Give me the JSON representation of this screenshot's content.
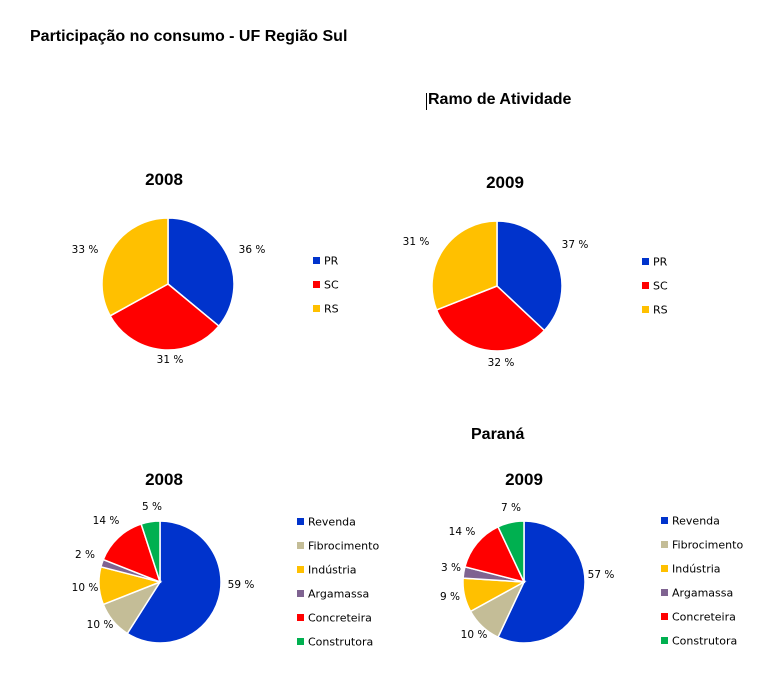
{
  "page": {
    "title": "Participação no consumo - UF Região Sul",
    "section_1_title": "Ramo de Atividade",
    "section_2_title": "Paraná"
  },
  "colors": {
    "PR": "#0033cc",
    "SC": "#ff0000",
    "RS": "#ffc000",
    "Revenda": "#0033cc",
    "Fibrocimento": "#c4bd97",
    "Indústria": "#ffc000",
    "Argamassa": "#7f6391",
    "Concreteira": "#ff0000",
    "Construtora": "#00b050"
  },
  "chart_data": [
    {
      "type": "pie",
      "title": "2008",
      "labels": [
        "PR",
        "SC",
        "RS"
      ],
      "values": [
        36,
        31,
        33
      ],
      "value_labels": [
        "36 %",
        "31 %",
        "33 %"
      ],
      "legend": "right"
    },
    {
      "type": "pie",
      "title": "2009",
      "labels": [
        "PR",
        "SC",
        "RS"
      ],
      "values": [
        37,
        32,
        31
      ],
      "value_labels": [
        "37 %",
        "32 %",
        "31 %"
      ],
      "legend": "right"
    },
    {
      "type": "pie",
      "title": "2008",
      "labels": [
        "Revenda",
        "Fibrocimento",
        "Indústria",
        "Argamassa",
        "Concreteira",
        "Construtora"
      ],
      "values": [
        59,
        10,
        10,
        2,
        14,
        5
      ],
      "value_labels": [
        "59 %",
        "10 %",
        "10 %",
        "2 %",
        "14 %",
        "5 %"
      ],
      "legend": "right"
    },
    {
      "type": "pie",
      "title": "2009",
      "labels": [
        "Revenda",
        "Fibrocimento",
        "Indústria",
        "Argamassa",
        "Concreteira",
        "Construtora"
      ],
      "values": [
        57,
        10,
        9,
        3,
        14,
        7
      ],
      "value_labels": [
        "57 %",
        "10 %",
        "9 %",
        "3 %",
        "14 %",
        "7 %"
      ],
      "legend": "right"
    }
  ]
}
